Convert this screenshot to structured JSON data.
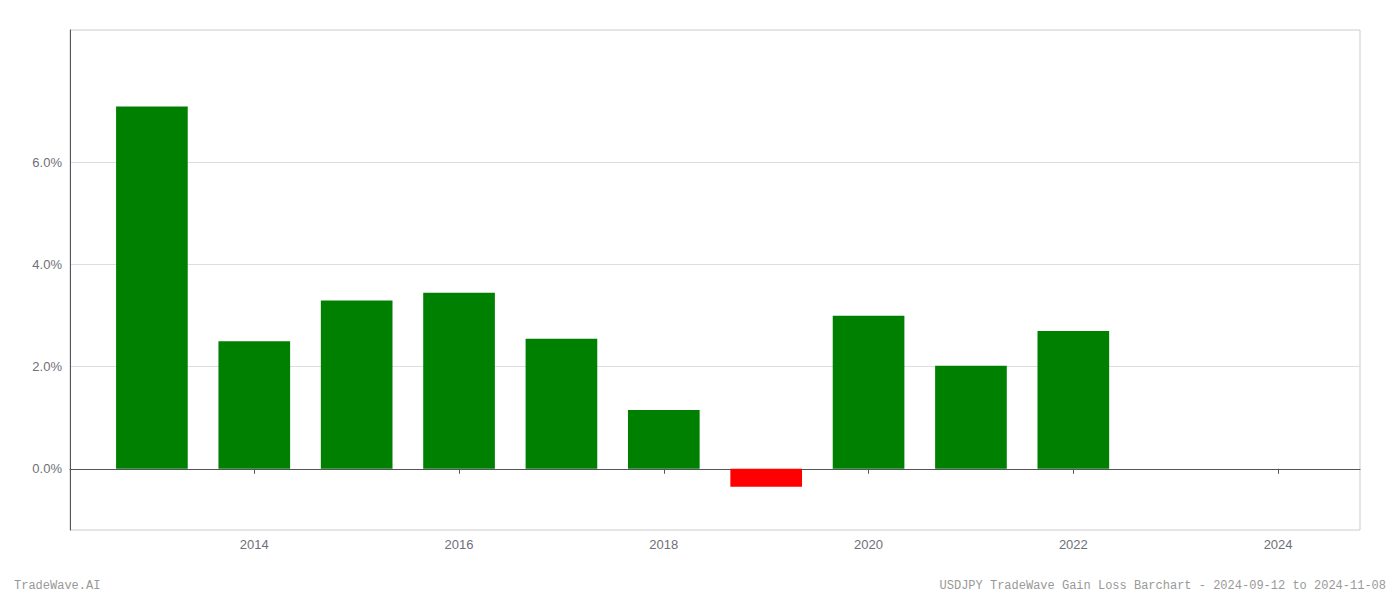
{
  "chart_data": {
    "type": "bar",
    "x": [
      2013,
      2014,
      2015,
      2016,
      2017,
      2018,
      2019,
      2020,
      2021,
      2022,
      2023
    ],
    "values": [
      0.071,
      0.025,
      0.033,
      0.0345,
      0.0255,
      0.0115,
      -0.0035,
      0.03,
      0.0202,
      0.027,
      0.0
    ],
    "colors": [
      "#008000",
      "#008000",
      "#008000",
      "#008000",
      "#008000",
      "#008000",
      "#ff0000",
      "#008000",
      "#008000",
      "#008000",
      "#008000"
    ],
    "xlim": [
      2012.2,
      2024.8
    ],
    "xticks": [
      2014,
      2016,
      2018,
      2020,
      2022,
      2024
    ],
    "ylim": [
      -0.012,
      0.086
    ],
    "yticks": [
      {
        "value": 0.0,
        "label": "0.0%"
      },
      {
        "value": 0.02,
        "label": "2.0%"
      },
      {
        "value": 0.04,
        "label": "4.0%"
      },
      {
        "value": 0.06,
        "label": "6.0%"
      }
    ],
    "grid": true,
    "annotations": [
      "TradeWave.AI",
      "USDJPY TradeWave Gain Loss Barchart - 2024-09-12 to 2024-11-08"
    ]
  }
}
